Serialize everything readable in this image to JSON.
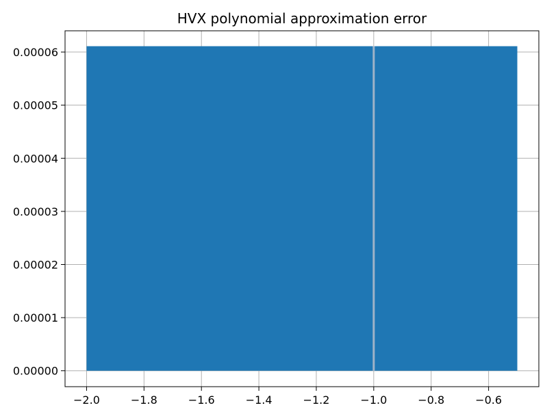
{
  "chart_data": {
    "type": "area",
    "title": "HVX polynomial approximation error",
    "xlabel": "",
    "ylabel": "",
    "xlim": [
      -2.075,
      -0.425
    ],
    "ylim": [
      -3e-06,
      6.4e-05
    ],
    "grid": true,
    "legend": "none",
    "color": "#1f77b4",
    "x_ticks": [
      -2.0,
      -1.8,
      -1.6,
      -1.4,
      -1.2,
      -1.0,
      -0.8,
      -0.6
    ],
    "x_tick_labels": [
      "−2.0",
      "−1.8",
      "−1.6",
      "−1.4",
      "−1.2",
      "−1.0",
      "−0.8",
      "−0.6"
    ],
    "y_ticks": [
      0.0,
      1e-05,
      2e-05,
      3e-05,
      4e-05,
      5e-05,
      6e-05
    ],
    "y_tick_labels": [
      "0.00000",
      "0.00001",
      "0.00002",
      "0.00003",
      "0.00004",
      "0.00005",
      "0.00006"
    ],
    "series": [
      {
        "x": [
          -2.0,
          -0.5
        ],
        "y_min": 0.0,
        "y_max": 6.11e-05
      }
    ],
    "annotations": [
      {
        "type": "vertical-gap",
        "x": -1.0,
        "note": "thin gap in filled region near x = -1.0"
      }
    ]
  }
}
